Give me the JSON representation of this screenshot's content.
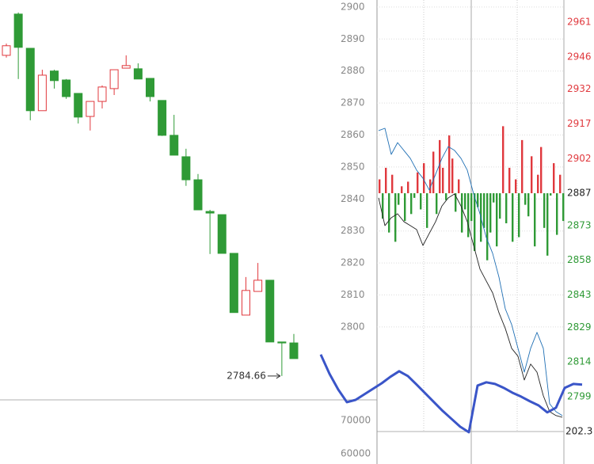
{
  "chart_data": [
    {
      "type": "candlestick",
      "open": [
        2884.9,
        2897.8,
        2887.1,
        2867.6,
        2880.0,
        2877.2,
        2873.0,
        2865.8,
        2870.5,
        2874.5,
        2880.9,
        2880.7,
        2877.7,
        2870.8,
        2859.9,
        2853.2,
        2846.0,
        2836.1,
        2835.1,
        2823.0,
        2803.7,
        2811.1,
        2814.6,
        2795.3,
        2795.0
      ],
      "high": [
        2888.6,
        2898.3,
        2887.1,
        2880.4,
        2880.4,
        2877.5,
        2873.0,
        2870.5,
        2875.5,
        2880.4,
        2884.9,
        2882.4,
        2877.7,
        2870.8,
        2866.3,
        2855.7,
        2847.8,
        2836.6,
        2835.1,
        2823.0,
        2815.6,
        2820.0,
        2814.6,
        2795.3,
        2797.8
      ],
      "low": [
        2884.2,
        2877.5,
        2864.6,
        2867.6,
        2874.5,
        2871.3,
        2863.6,
        2861.4,
        2868.3,
        2872.5,
        2880.9,
        2877.5,
        2870.5,
        2859.7,
        2853.7,
        2844.1,
        2836.6,
        2822.8,
        2823.0,
        2804.5,
        2803.7,
        2811.1,
        2795.3,
        2784.66,
        2790.1
      ],
      "close": [
        2887.9,
        2887.4,
        2867.6,
        2878.7,
        2877.0,
        2872.0,
        2865.6,
        2870.5,
        2875.0,
        2880.4,
        2881.7,
        2877.5,
        2872.0,
        2859.9,
        2853.7,
        2846.0,
        2836.6,
        2835.6,
        2823.0,
        2804.5,
        2811.4,
        2814.6,
        2795.3,
        2795.0,
        2790.1
      ],
      "up_color": "#e0383d",
      "down_color": "#2f9a36",
      "annotation": 2784.66,
      "ylim": [
        2777.2,
        2902.2
      ],
      "yticks": [
        2900,
        2890,
        2880,
        2870,
        2860,
        2850,
        2840,
        2830,
        2820,
        2810,
        2800
      ],
      "volume_ylim": [
        56905,
        76190
      ],
      "volume_yticks": [
        70000,
        60000
      ]
    },
    {
      "type": "intraday",
      "y2lim": [
        2783.9,
        2970.6
      ],
      "y2ticks": [
        2961,
        2946,
        2932,
        2917,
        2902,
        2887,
        2873,
        2858,
        2843,
        2829,
        2814,
        2799
      ],
      "baseline": 2887,
      "up_color": "#e0383d",
      "down_color": "#2f9a36",
      "sub_ticks": [
        202.3
      ],
      "price": {
        "color": "#1f6fb4",
        "values": [
          2914.1,
          2915.1,
          2903.8,
          2908.9,
          2905.5,
          2902.1,
          2897.0,
          2893.5,
          2888.4,
          2895.2,
          2902.1,
          2907.2,
          2905.5,
          2902.1,
          2897.0,
          2886.7,
          2878.1,
          2867.8,
          2861.0,
          2850.7,
          2837.0,
          2830.2,
          2819.9,
          2809.6,
          2819.9,
          2826.8,
          2819.9,
          2795.9,
          2792.5,
          2790.8
        ]
      },
      "average": {
        "color": "#222222",
        "values": [
          2885.0,
          2873.0,
          2876.4,
          2878.1,
          2874.7,
          2873.0,
          2871.3,
          2864.4,
          2869.6,
          2874.7,
          2881.5,
          2885.0,
          2886.7,
          2881.5,
          2874.7,
          2864.4,
          2854.2,
          2849.0,
          2843.9,
          2835.3,
          2828.5,
          2819.9,
          2816.5,
          2806.2,
          2813.1,
          2809.6,
          2799.4,
          2792.5,
          2790.8,
          2790.1
        ]
      },
      "bars": [
        2893,
        2876,
        2898,
        2870,
        2895,
        2866,
        2882,
        2890,
        2875,
        2892,
        2878,
        2885,
        2896,
        2880,
        2900,
        2872,
        2893,
        2905,
        2878,
        2910,
        2898,
        2884,
        2912,
        2902,
        2879,
        2893,
        2870,
        2880,
        2868,
        2875,
        2862,
        2881,
        2866,
        2872,
        2858,
        2870,
        2883,
        2864,
        2876,
        2916,
        2874,
        2898,
        2866,
        2893,
        2868,
        2910,
        2882,
        2877,
        2903,
        2864,
        2895,
        2907,
        2872,
        2860,
        2886,
        2900,
        2869,
        2895,
        2875
      ],
      "indicator": {
        "color": "#3a55c8",
        "values": [
          2817.2,
          2808.9,
          2802.1,
          2796.6,
          2797.6,
          2800.0,
          2802.4,
          2804.8,
          2807.6,
          2810.0,
          2807.9,
          2804.2,
          2800.4,
          2796.6,
          2792.8,
          2789.4,
          2786.0,
          2783.6,
          2803.8,
          2805.2,
          2804.5,
          2802.8,
          2800.7,
          2799.0,
          2797.0,
          2795.2,
          2792.2,
          2794.2,
          2802.8,
          2804.5,
          2804.2
        ]
      }
    }
  ]
}
